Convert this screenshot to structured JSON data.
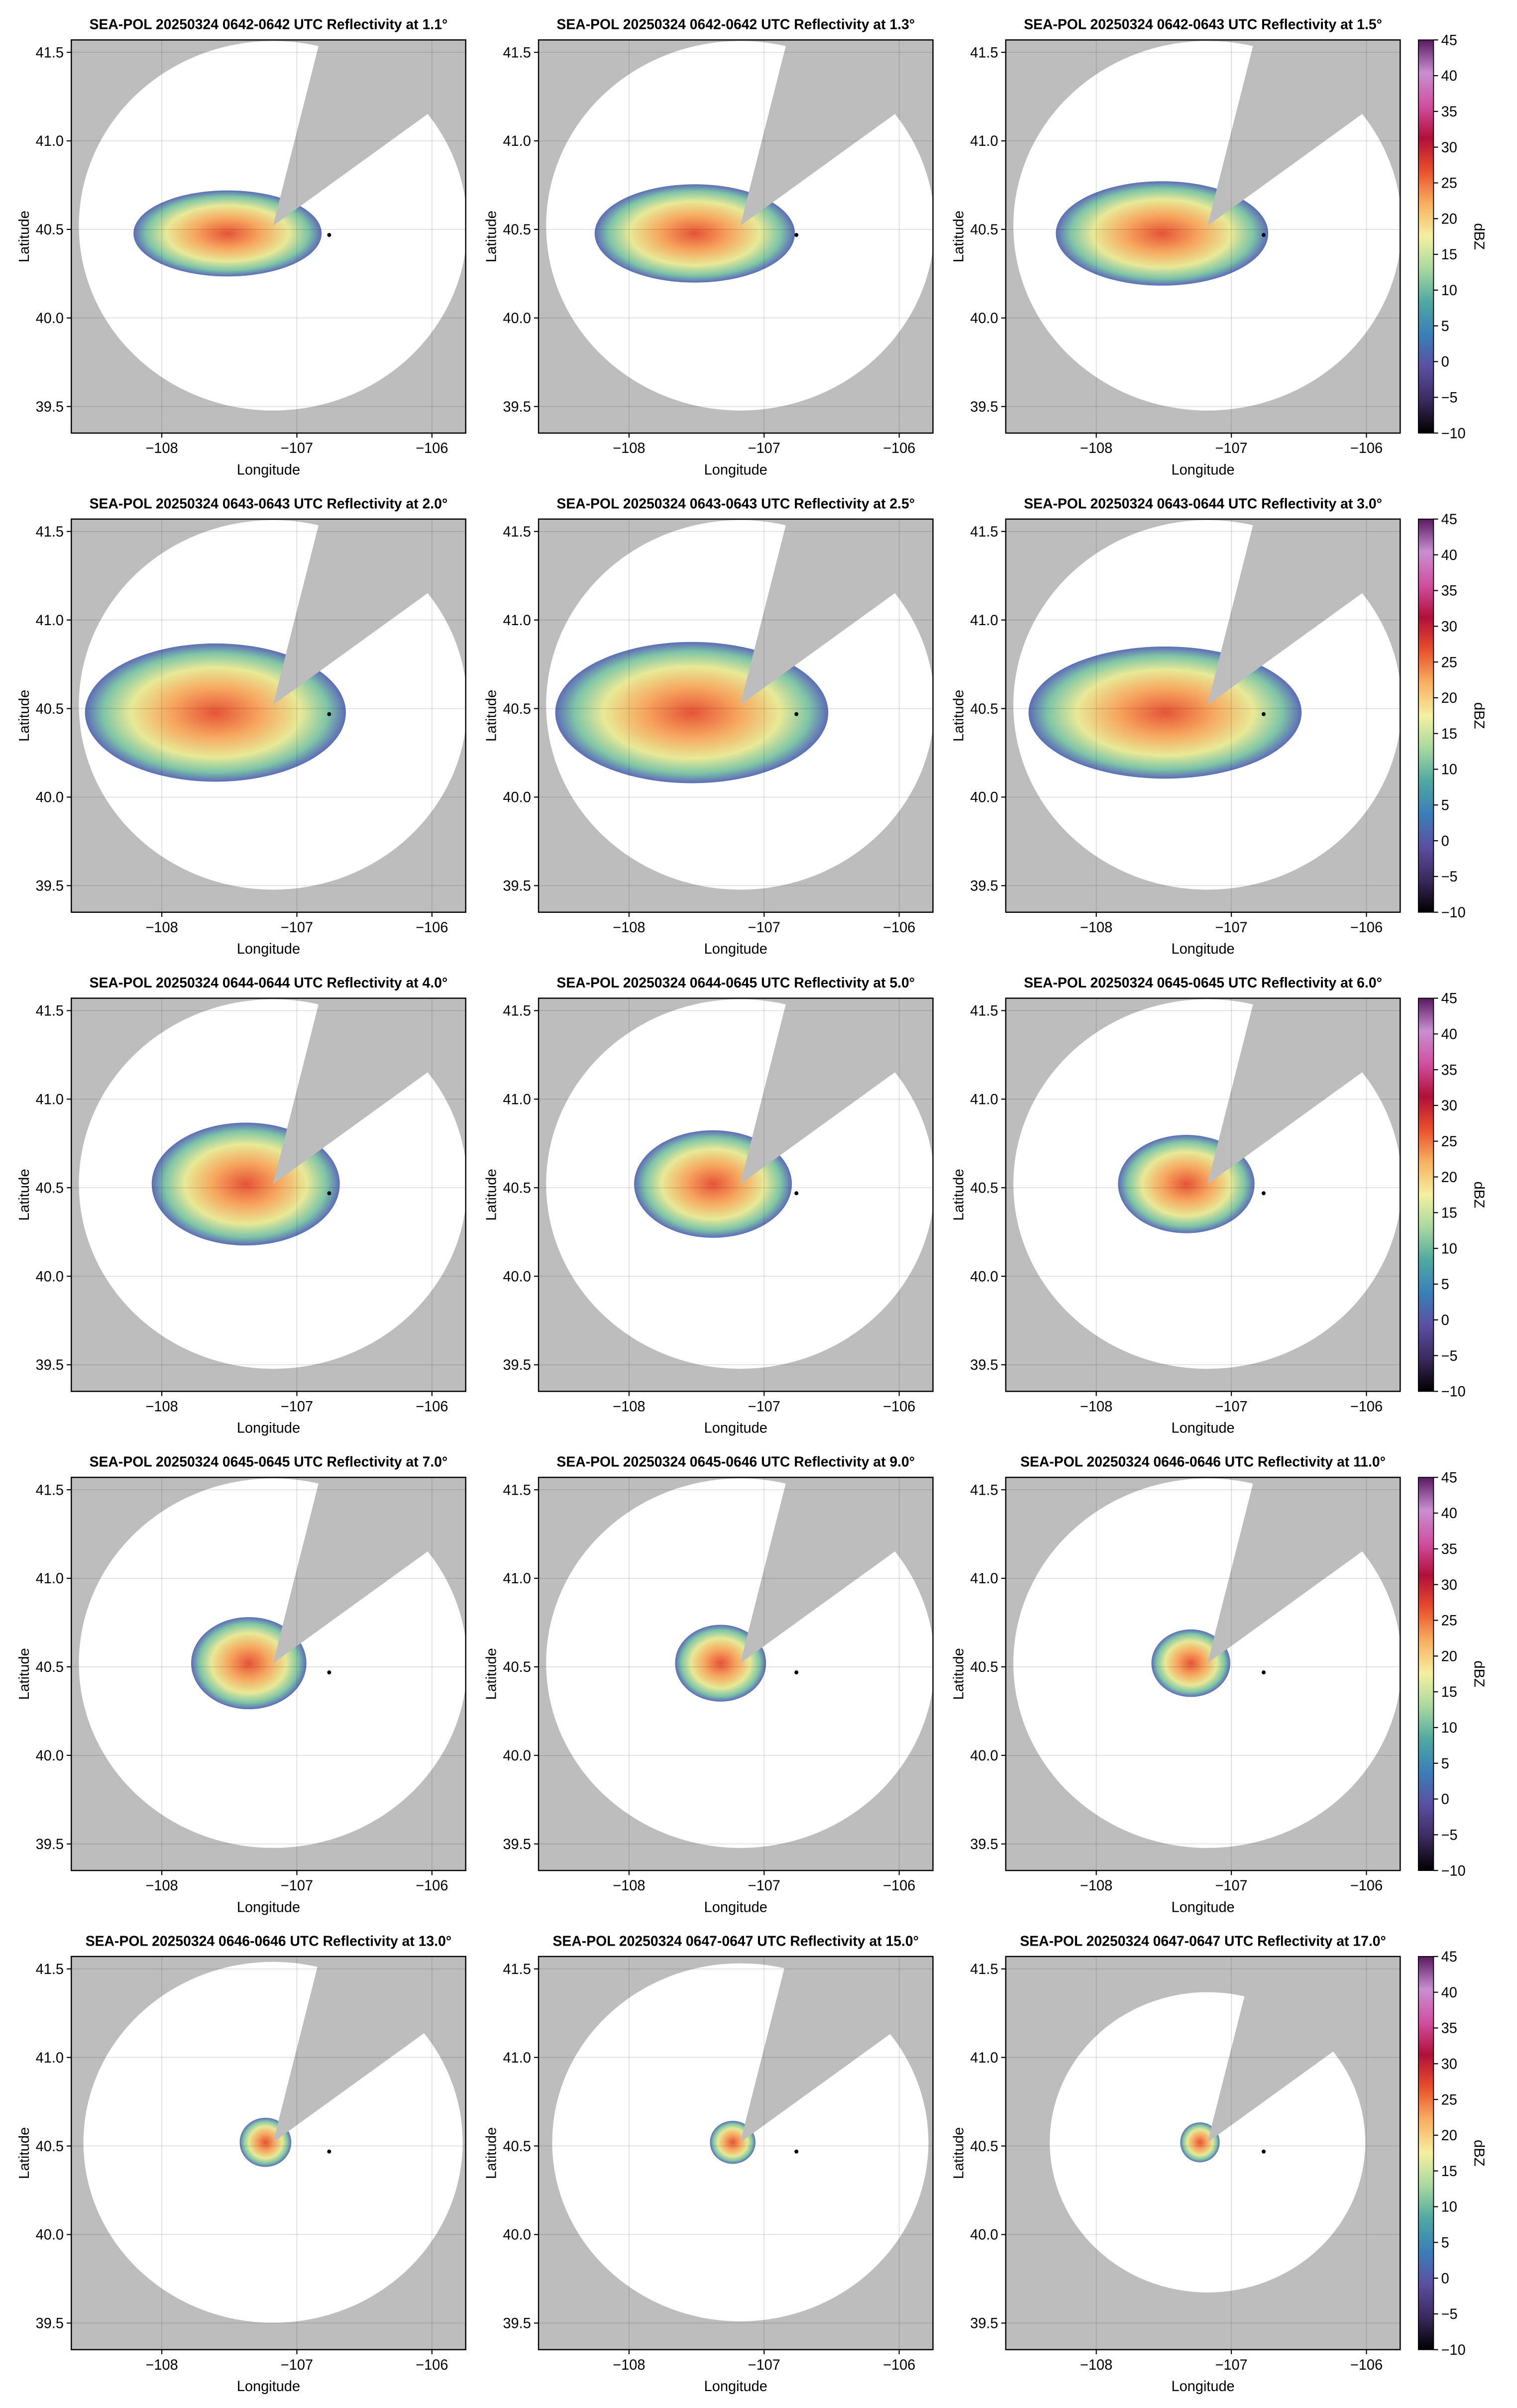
{
  "chart_data": [
    {
      "type": "radar",
      "title": "SEA-POL 20250324 0642-0642 UTC Reflectivity at 1.1°",
      "xlabel": "Longitude",
      "ylabel": "Latitude",
      "xlim": [
        -108.67,
        -105.75
      ],
      "ylim": [
        39.35,
        41.57
      ],
      "xticks": [
        {
          "value": -108,
          "label": "−108"
        },
        {
          "value": -107,
          "label": "−107"
        },
        {
          "value": -106,
          "label": "−106"
        }
      ],
      "yticks": [
        39.5,
        {
          "value": 40,
          "label": "40.0"
        },
        40.5,
        {
          "value": 41,
          "label": "41.0"
        },
        41.5
      ],
      "grid": true
    },
    {
      "type": "radar",
      "title": "SEA-POL 20250324 0642-0642 UTC Reflectivity at 1.3°",
      "xlabel": "Longitude",
      "ylabel": "Latitude",
      "xlim": [
        -108.67,
        -105.75
      ],
      "ylim": [
        39.35,
        41.57
      ],
      "xticks": [
        {
          "value": -108,
          "label": "−108"
        },
        {
          "value": -107,
          "label": "−107"
        },
        {
          "value": -106,
          "label": "−106"
        }
      ],
      "yticks": [
        39.5,
        {
          "value": 40,
          "label": "40.0"
        },
        40.5,
        {
          "value": 41,
          "label": "41.0"
        },
        41.5
      ],
      "grid": true
    },
    {
      "type": "radar",
      "title": "SEA-POL 20250324 0642-0643 UTC Reflectivity at 1.5°",
      "xlabel": "Longitude",
      "ylabel": "Latitude",
      "xlim": [
        -108.67,
        -105.75
      ],
      "ylim": [
        39.35,
        41.57
      ],
      "xticks": [
        {
          "value": -108,
          "label": "−108"
        },
        {
          "value": -107,
          "label": "−107"
        },
        {
          "value": -106,
          "label": "−106"
        }
      ],
      "yticks": [
        39.5,
        {
          "value": 40,
          "label": "40.0"
        },
        40.5,
        {
          "value": 41,
          "label": "41.0"
        },
        41.5
      ],
      "grid": true,
      "colorbar": {
        "label": "dBZ",
        "lim": [
          -10,
          45
        ],
        "ticks": [
          {
            "value": -10,
            "label": "−10"
          },
          {
            "value": -5,
            "label": "−5"
          },
          0,
          5,
          10,
          15,
          20,
          25,
          30,
          35,
          40,
          45
        ],
        "colors": [
          "#000000",
          "#3b2a5e",
          "#5b4fa0",
          "#3a7fb8",
          "#4fa8a0",
          "#a8d8a0",
          "#f4f0a0",
          "#f8b060",
          "#e8502c",
          "#b0103a",
          "#d050a0",
          "#c890d0",
          "#5a1a60"
        ]
      }
    },
    {
      "type": "radar",
      "title": "SEA-POL 20250324 0643-0643 UTC Reflectivity at 2.0°",
      "xlabel": "Longitude",
      "ylabel": "Latitude",
      "xlim": [
        -108.67,
        -105.75
      ],
      "ylim": [
        39.35,
        41.57
      ],
      "xticks": [
        {
          "value": -108,
          "label": "−108"
        },
        {
          "value": -107,
          "label": "−107"
        },
        {
          "value": -106,
          "label": "−106"
        }
      ],
      "yticks": [
        39.5,
        {
          "value": 40,
          "label": "40.0"
        },
        40.5,
        {
          "value": 41,
          "label": "41.0"
        },
        41.5
      ],
      "grid": true
    },
    {
      "type": "radar",
      "title": "SEA-POL 20250324 0643-0643 UTC Reflectivity at 2.5°",
      "xlabel": "Longitude",
      "ylabel": "Latitude",
      "xlim": [
        -108.67,
        -105.75
      ],
      "ylim": [
        39.35,
        41.57
      ],
      "xticks": [
        {
          "value": -108,
          "label": "−108"
        },
        {
          "value": -107,
          "label": "−107"
        },
        {
          "value": -106,
          "label": "−106"
        }
      ],
      "yticks": [
        39.5,
        {
          "value": 40,
          "label": "40.0"
        },
        40.5,
        {
          "value": 41,
          "label": "41.0"
        },
        41.5
      ],
      "grid": true
    },
    {
      "type": "radar",
      "title": "SEA-POL 20250324 0643-0644 UTC Reflectivity at 3.0°",
      "xlabel": "Longitude",
      "ylabel": "Latitude",
      "xlim": [
        -108.67,
        -105.75
      ],
      "ylim": [
        39.35,
        41.57
      ],
      "xticks": [
        {
          "value": -108,
          "label": "−108"
        },
        {
          "value": -107,
          "label": "−107"
        },
        {
          "value": -106,
          "label": "−106"
        }
      ],
      "yticks": [
        39.5,
        {
          "value": 40,
          "label": "40.0"
        },
        40.5,
        {
          "value": 41,
          "label": "41.0"
        },
        41.5
      ],
      "grid": true,
      "colorbar": {
        "label": "dBZ",
        "lim": [
          -10,
          45
        ],
        "ticks": [
          {
            "value": -10,
            "label": "−10"
          },
          {
            "value": -5,
            "label": "−5"
          },
          0,
          5,
          10,
          15,
          20,
          25,
          30,
          35,
          40,
          45
        ],
        "colors": [
          "#000000",
          "#3b2a5e",
          "#5b4fa0",
          "#3a7fb8",
          "#4fa8a0",
          "#a8d8a0",
          "#f4f0a0",
          "#f8b060",
          "#e8502c",
          "#b0103a",
          "#d050a0",
          "#c890d0",
          "#5a1a60"
        ]
      }
    },
    {
      "type": "radar",
      "title": "SEA-POL 20250324 0644-0644 UTC Reflectivity at 4.0°",
      "xlabel": "Longitude",
      "ylabel": "Latitude",
      "xlim": [
        -108.67,
        -105.75
      ],
      "ylim": [
        39.35,
        41.57
      ],
      "xticks": [
        {
          "value": -108,
          "label": "−108"
        },
        {
          "value": -107,
          "label": "−107"
        },
        {
          "value": -106,
          "label": "−106"
        }
      ],
      "yticks": [
        39.5,
        {
          "value": 40,
          "label": "40.0"
        },
        40.5,
        {
          "value": 41,
          "label": "41.0"
        },
        41.5
      ],
      "grid": true
    },
    {
      "type": "radar",
      "title": "SEA-POL 20250324 0644-0645 UTC Reflectivity at 5.0°",
      "xlabel": "Longitude",
      "ylabel": "Latitude",
      "xlim": [
        -108.67,
        -105.75
      ],
      "ylim": [
        39.35,
        41.57
      ],
      "xticks": [
        {
          "value": -108,
          "label": "−108"
        },
        {
          "value": -107,
          "label": "−107"
        },
        {
          "value": -106,
          "label": "−106"
        }
      ],
      "yticks": [
        39.5,
        {
          "value": 40,
          "label": "40.0"
        },
        40.5,
        {
          "value": 41,
          "label": "41.0"
        },
        41.5
      ],
      "grid": true
    },
    {
      "type": "radar",
      "title": "SEA-POL 20250324 0645-0645 UTC Reflectivity at 6.0°",
      "xlabel": "Longitude",
      "ylabel": "Latitude",
      "xlim": [
        -108.67,
        -105.75
      ],
      "ylim": [
        39.35,
        41.57
      ],
      "xticks": [
        {
          "value": -108,
          "label": "−108"
        },
        {
          "value": -107,
          "label": "−107"
        },
        {
          "value": -106,
          "label": "−106"
        }
      ],
      "yticks": [
        39.5,
        {
          "value": 40,
          "label": "40.0"
        },
        40.5,
        {
          "value": 41,
          "label": "41.0"
        },
        41.5
      ],
      "grid": true,
      "colorbar": {
        "label": "dBZ",
        "lim": [
          -10,
          45
        ],
        "ticks": [
          {
            "value": -10,
            "label": "−10"
          },
          {
            "value": -5,
            "label": "−5"
          },
          0,
          5,
          10,
          15,
          20,
          25,
          30,
          35,
          40,
          45
        ],
        "colors": [
          "#000000",
          "#3b2a5e",
          "#5b4fa0",
          "#3a7fb8",
          "#4fa8a0",
          "#a8d8a0",
          "#f4f0a0",
          "#f8b060",
          "#e8502c",
          "#b0103a",
          "#d050a0",
          "#c890d0",
          "#5a1a60"
        ]
      }
    },
    {
      "type": "radar",
      "title": "SEA-POL 20250324 0645-0645 UTC Reflectivity at 7.0°",
      "xlabel": "Longitude",
      "ylabel": "Latitude",
      "xlim": [
        -108.67,
        -105.75
      ],
      "ylim": [
        39.35,
        41.57
      ],
      "xticks": [
        {
          "value": -108,
          "label": "−108"
        },
        {
          "value": -107,
          "label": "−107"
        },
        {
          "value": -106,
          "label": "−106"
        }
      ],
      "yticks": [
        39.5,
        {
          "value": 40,
          "label": "40.0"
        },
        40.5,
        {
          "value": 41,
          "label": "41.0"
        },
        41.5
      ],
      "grid": true
    },
    {
      "type": "radar",
      "title": "SEA-POL 20250324 0645-0646 UTC Reflectivity at 9.0°",
      "xlabel": "Longitude",
      "ylabel": "Latitude",
      "xlim": [
        -108.67,
        -105.75
      ],
      "ylim": [
        39.35,
        41.57
      ],
      "xticks": [
        {
          "value": -108,
          "label": "−108"
        },
        {
          "value": -107,
          "label": "−107"
        },
        {
          "value": -106,
          "label": "−106"
        }
      ],
      "yticks": [
        39.5,
        {
          "value": 40,
          "label": "40.0"
        },
        40.5,
        {
          "value": 41,
          "label": "41.0"
        },
        41.5
      ],
      "grid": true
    },
    {
      "type": "radar",
      "title": "SEA-POL 20250324 0646-0646 UTC Reflectivity at 11.0°",
      "xlabel": "Longitude",
      "ylabel": "Latitude",
      "xlim": [
        -108.67,
        -105.75
      ],
      "ylim": [
        39.35,
        41.57
      ],
      "xticks": [
        {
          "value": -108,
          "label": "−108"
        },
        {
          "value": -107,
          "label": "−107"
        },
        {
          "value": -106,
          "label": "−106"
        }
      ],
      "yticks": [
        39.5,
        {
          "value": 40,
          "label": "40.0"
        },
        40.5,
        {
          "value": 41,
          "label": "41.0"
        },
        41.5
      ],
      "grid": true,
      "colorbar": {
        "label": "dBZ",
        "lim": [
          -10,
          45
        ],
        "ticks": [
          {
            "value": -10,
            "label": "−10"
          },
          {
            "value": -5,
            "label": "−5"
          },
          0,
          5,
          10,
          15,
          20,
          25,
          30,
          35,
          40,
          45
        ],
        "colors": [
          "#000000",
          "#3b2a5e",
          "#5b4fa0",
          "#3a7fb8",
          "#4fa8a0",
          "#a8d8a0",
          "#f4f0a0",
          "#f8b060",
          "#e8502c",
          "#b0103a",
          "#d050a0",
          "#c890d0",
          "#5a1a60"
        ]
      }
    },
    {
      "type": "radar",
      "title": "SEA-POL 20250324 0646-0646 UTC Reflectivity at 13.0°",
      "xlabel": "Longitude",
      "ylabel": "Latitude",
      "xlim": [
        -108.67,
        -105.75
      ],
      "ylim": [
        39.35,
        41.57
      ],
      "xticks": [
        {
          "value": -108,
          "label": "−108"
        },
        {
          "value": -107,
          "label": "−107"
        },
        {
          "value": -106,
          "label": "−106"
        }
      ],
      "yticks": [
        39.5,
        {
          "value": 40,
          "label": "40.0"
        },
        40.5,
        {
          "value": 41,
          "label": "41.0"
        },
        41.5
      ],
      "grid": true
    },
    {
      "type": "radar",
      "title": "SEA-POL 20250324 0647-0647 UTC Reflectivity at 15.0°",
      "xlabel": "Longitude",
      "ylabel": "Latitude",
      "xlim": [
        -108.67,
        -105.75
      ],
      "ylim": [
        39.35,
        41.57
      ],
      "xticks": [
        {
          "value": -108,
          "label": "−108"
        },
        {
          "value": -107,
          "label": "−107"
        },
        {
          "value": -106,
          "label": "−106"
        }
      ],
      "yticks": [
        39.5,
        {
          "value": 40,
          "label": "40.0"
        },
        40.5,
        {
          "value": 41,
          "label": "41.0"
        },
        41.5
      ],
      "grid": true
    },
    {
      "type": "radar",
      "title": "SEA-POL 20250324 0647-0647 UTC Reflectivity at 17.0°",
      "xlabel": "Longitude",
      "ylabel": "Latitude",
      "xlim": [
        -108.67,
        -105.75
      ],
      "ylim": [
        39.35,
        41.57
      ],
      "xticks": [
        {
          "value": -108,
          "label": "−108"
        },
        {
          "value": -107,
          "label": "−107"
        },
        {
          "value": -106,
          "label": "−106"
        }
      ],
      "yticks": [
        39.5,
        {
          "value": 40,
          "label": "40.0"
        },
        40.5,
        {
          "value": 41,
          "label": "41.0"
        },
        41.5
      ],
      "grid": true,
      "colorbar": {
        "label": "dBZ",
        "lim": [
          -10,
          45
        ],
        "ticks": [
          {
            "value": -10,
            "label": "−10"
          },
          {
            "value": -5,
            "label": "−5"
          },
          0,
          5,
          10,
          15,
          20,
          25,
          30,
          35,
          40,
          45
        ],
        "colors": [
          "#000000",
          "#3b2a5e",
          "#5b4fa0",
          "#3a7fb8",
          "#4fa8a0",
          "#a8d8a0",
          "#f4f0a0",
          "#f8b060",
          "#e8502c",
          "#b0103a",
          "#d050a0",
          "#c890d0",
          "#5a1a60"
        ]
      }
    }
  ]
}
